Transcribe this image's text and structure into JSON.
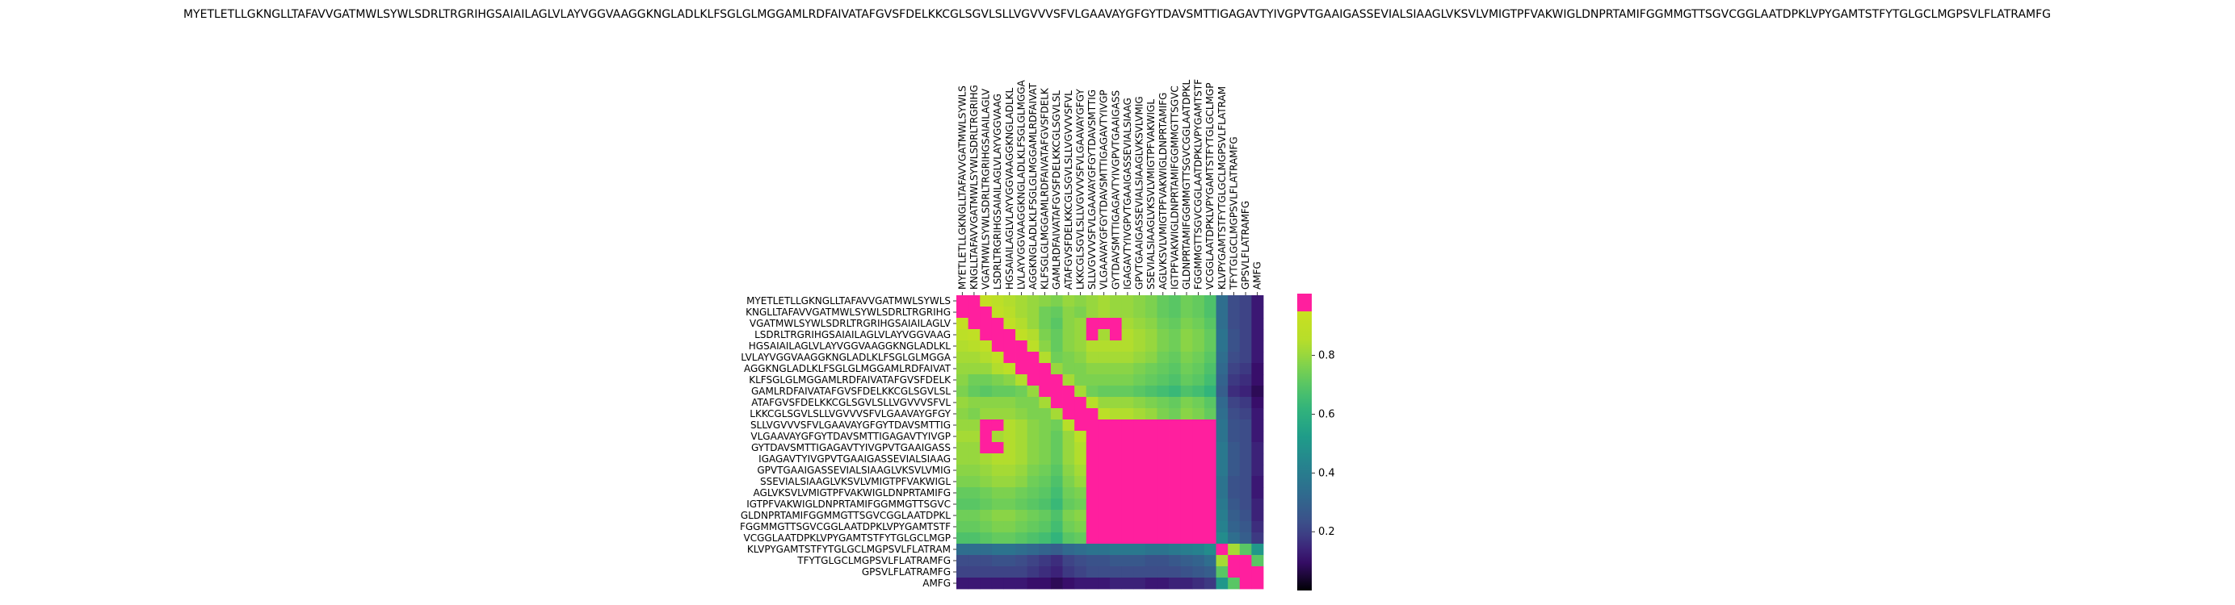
{
  "chart_data": {
    "type": "heatmap",
    "title": "MYETLETLLGKNGLLTAFAVVGATMWLSYWLSDRLTRGRIHGSAIAILAGLVLAYVGGVAAGGKNGLADLKLFSGLGLMGGAMLRDFAIVATAFGVSFDELKKCGLSGVLSLLVGVVVSFVLGAAVAYGFGYTDAVSMTTIGAGAVTYIVGPVTGAAIGASSEVIALSIAAGLVKSVLVMIGTPFVAKWIGLDNPRTAMIFGGMMGTTSGVCGGLAATDPKLVPYGAMTSTFYTGLGCLMGPSVLFLATRAMFG",
    "xlabel": "",
    "ylabel": "",
    "row_labels": [
      "MYETLETLLGKNGLLTAFAVVGATMWLSYWLS",
      "KNGLLTAFAVVGATMWLSYWLSDRLTRGRIHG",
      "VGATMWLSYWLSDRLTRGRIHGSAIAILAGLV",
      "LSDRLTRGRIHGSAIAILAGLVLAYVGGVAAG",
      "HGSAIAILAGLVLAYVGGVAAGGKNGLADLKL",
      "LVLAYVGGVAAGGKNGLADLKLFSGLGLMGGA",
      "AGGKNGLADLKLFSGLGLMGGAMLRDFAIVAT",
      "KLFSGLGLMGGAMLRDFAIVATAFGVSFDELK",
      "GAMLRDFAIVATAFGVSFDELKKCGLSGVLSL",
      "ATAFGVSFDELKKCGLSGVLSLLVGVVVSFVL",
      "LKKCGLSGVLSLLVGVVVSFVLGAAVAYGFGY",
      "SLLVGVVVSFVLGAAVAYGFGYTDAVSMTTIG",
      "VLGAAVAYGFGYTDAVSMTTIGAGAVTYIVGP",
      "GYTDAVSMTTIGAGAVTYIVGPVTGAAIGASS",
      "IGAGAVTYIVGPVTGAAIGASSEVIALSIAAG",
      "GPVTGAAIGASSEVIALSIAAGLVKSVLVMIG",
      "SSEVIALSIAAGLVKSVLVMIGTPFVAKWIGL",
      "AGLVKSVLVMIGTPFVAKWIGLDNPRTAMIFG",
      "IGTPFVAKWIGLDNPRTAMIFGGMMGTTSGVC",
      "GLDNPRTAMIFGGMMGTTSGVCGGLAATDPKL",
      "FGGMMGTTSGVCGGLAATDPKLVPYGAMTSTF",
      "VCGGLAATDPKLVPYGAMTSTFYTGLGCLMGP",
      "KLVPYGAMTSTFYTGLGCLMGPSVLFLATRAM",
      "TFYTGLGCLMGPSVLFLATRAMFG",
      "GPSVLFLATRAMFG",
      "AMFG"
    ],
    "col_labels": [
      "MYETLETLLGKNGLLTAFAVVGATMWLSYWLS",
      "KNGLLTAFAVVGATMWLSYWLSDRLTRGRIHG",
      "VGATMWLSYWLSDRLTRGRIHGSAIAILAGLV",
      "LSDRLTRGRIHGSAIAILAGLVLAYVGGVAAG",
      "HGSAIAILAGLVLAYVGGVAAGGKNGLADLKL",
      "LVLAYVGGVAAGGKNGLADLKLFSGLGLMGGA",
      "AGGKNGLADLKLFSGLGLMGGAMLRDFAIVAT",
      "KLFSGLGLMGGAMLRDFAIVATAFGVSFDELK",
      "GAMLRDFAIVATAFGVSFDELKKCGLSGVLSL",
      "ATAFGVSFDELKKCGLSGVLSLLVGVVVSFVL",
      "LKKCGLSGVLSLLVGVVVSFVLGAAVAYGFGY",
      "SLLVGVVVSFVLGAAVAYGFGYTDAVSMTTIG",
      "VLGAAVAYGFGYTDAVSMTTIGAGAVTYIVGP",
      "GYTDAVSMTTIGAGAVTYIVGPVTGAAIGASS",
      "IGAGAVTYIVGPVTGAAIGASSEVIALSIAAG",
      "GPVTGAAIGASSEVIALSIAAGLVKSVLVMIG",
      "SSEVIALSIAAGLVKSVLVMIGTPFVAKWIGL",
      "AGLVKSVLVMIGTPFVAKWIGLDNPRTAMIFG",
      "IGTPFVAKWIGLDNPRTAMIFGGMMGTTSGVC",
      "GLDNPRTAMIFGGMMGTTSGVCGGLAATDPKL",
      "FGGMMGTTSGVCGGLAATDPKLVPYGAMTSTF",
      "VCGGLAATDPKLVPYGAMTSTFYTGLGCLMGP",
      "KLVPYGAMTSTFYTGLGCLMGPSVLFLATRAM",
      "TFYTGLGCLMGPSVLFLATRAMFG",
      "GPSVLFLATRAMFG",
      "AMFG"
    ],
    "values": [
      [
        0.99,
        0.99,
        0.92,
        0.88,
        0.84,
        0.82,
        0.8,
        0.78,
        0.76,
        0.8,
        0.78,
        0.8,
        0.82,
        0.8,
        0.8,
        0.78,
        0.76,
        0.72,
        0.7,
        0.74,
        0.72,
        0.68,
        0.34,
        0.22,
        0.2,
        0.12
      ],
      [
        0.99,
        0.99,
        0.99,
        0.9,
        0.86,
        0.82,
        0.8,
        0.74,
        0.72,
        0.78,
        0.76,
        0.8,
        0.82,
        0.8,
        0.8,
        0.78,
        0.76,
        0.72,
        0.7,
        0.74,
        0.72,
        0.68,
        0.34,
        0.22,
        0.2,
        0.12
      ],
      [
        0.92,
        0.99,
        0.99,
        0.99,
        0.9,
        0.84,
        0.8,
        0.74,
        0.7,
        0.78,
        0.8,
        0.99,
        0.99,
        0.99,
        0.82,
        0.8,
        0.78,
        0.74,
        0.72,
        0.76,
        0.74,
        0.7,
        0.34,
        0.22,
        0.2,
        0.12
      ],
      [
        0.88,
        0.9,
        0.99,
        0.99,
        0.99,
        0.9,
        0.84,
        0.76,
        0.72,
        0.78,
        0.8,
        0.99,
        0.82,
        0.99,
        0.84,
        0.82,
        0.8,
        0.76,
        0.74,
        0.78,
        0.76,
        0.72,
        0.36,
        0.24,
        0.2,
        0.12
      ],
      [
        0.84,
        0.86,
        0.9,
        0.99,
        0.99,
        0.99,
        0.88,
        0.78,
        0.72,
        0.78,
        0.8,
        0.84,
        0.84,
        0.84,
        0.84,
        0.82,
        0.8,
        0.76,
        0.74,
        0.78,
        0.76,
        0.72,
        0.36,
        0.24,
        0.2,
        0.12
      ],
      [
        0.82,
        0.82,
        0.84,
        0.9,
        0.99,
        0.99,
        0.99,
        0.84,
        0.74,
        0.76,
        0.78,
        0.82,
        0.82,
        0.82,
        0.82,
        0.8,
        0.78,
        0.74,
        0.72,
        0.76,
        0.74,
        0.7,
        0.34,
        0.22,
        0.2,
        0.12
      ],
      [
        0.8,
        0.8,
        0.8,
        0.84,
        0.88,
        0.99,
        0.99,
        0.99,
        0.8,
        0.76,
        0.76,
        0.78,
        0.78,
        0.78,
        0.78,
        0.76,
        0.74,
        0.72,
        0.7,
        0.74,
        0.72,
        0.68,
        0.32,
        0.2,
        0.18,
        0.1
      ],
      [
        0.78,
        0.74,
        0.74,
        0.76,
        0.78,
        0.84,
        0.99,
        0.99,
        0.99,
        0.82,
        0.76,
        0.76,
        0.76,
        0.76,
        0.76,
        0.74,
        0.72,
        0.7,
        0.68,
        0.72,
        0.7,
        0.66,
        0.3,
        0.18,
        0.16,
        0.1
      ],
      [
        0.76,
        0.72,
        0.7,
        0.72,
        0.72,
        0.74,
        0.8,
        0.99,
        0.99,
        0.99,
        0.82,
        0.74,
        0.72,
        0.72,
        0.72,
        0.7,
        0.68,
        0.66,
        0.64,
        0.68,
        0.66,
        0.62,
        0.28,
        0.16,
        0.14,
        0.08
      ],
      [
        0.8,
        0.78,
        0.78,
        0.78,
        0.78,
        0.76,
        0.76,
        0.82,
        0.99,
        0.99,
        0.99,
        0.86,
        0.8,
        0.8,
        0.8,
        0.78,
        0.76,
        0.74,
        0.72,
        0.76,
        0.74,
        0.7,
        0.32,
        0.2,
        0.18,
        0.1
      ],
      [
        0.78,
        0.76,
        0.8,
        0.8,
        0.8,
        0.78,
        0.76,
        0.76,
        0.82,
        0.99,
        0.99,
        0.99,
        0.88,
        0.84,
        0.84,
        0.82,
        0.8,
        0.76,
        0.74,
        0.78,
        0.76,
        0.72,
        0.34,
        0.22,
        0.2,
        0.12
      ],
      [
        0.8,
        0.8,
        0.99,
        0.99,
        0.84,
        0.82,
        0.78,
        0.76,
        0.74,
        0.86,
        0.99,
        0.99,
        0.99,
        0.99,
        0.99,
        0.99,
        0.99,
        0.99,
        0.99,
        0.99,
        0.99,
        0.99,
        0.36,
        0.24,
        0.22,
        0.12
      ],
      [
        0.82,
        0.82,
        0.99,
        0.82,
        0.84,
        0.82,
        0.78,
        0.76,
        0.72,
        0.8,
        0.88,
        0.99,
        0.99,
        0.99,
        0.99,
        0.99,
        0.99,
        0.99,
        0.99,
        0.99,
        0.99,
        0.99,
        0.36,
        0.24,
        0.22,
        0.12
      ],
      [
        0.8,
        0.8,
        0.99,
        0.99,
        0.84,
        0.82,
        0.78,
        0.76,
        0.72,
        0.8,
        0.84,
        0.99,
        0.99,
        0.99,
        0.99,
        0.99,
        0.99,
        0.99,
        0.99,
        0.99,
        0.99,
        0.99,
        0.38,
        0.26,
        0.22,
        0.14
      ],
      [
        0.8,
        0.8,
        0.82,
        0.84,
        0.84,
        0.82,
        0.78,
        0.76,
        0.72,
        0.8,
        0.84,
        0.99,
        0.99,
        0.99,
        0.99,
        0.99,
        0.99,
        0.99,
        0.99,
        0.99,
        0.99,
        0.99,
        0.38,
        0.26,
        0.22,
        0.14
      ],
      [
        0.78,
        0.78,
        0.8,
        0.82,
        0.82,
        0.8,
        0.76,
        0.74,
        0.7,
        0.78,
        0.82,
        0.99,
        0.99,
        0.99,
        0.99,
        0.99,
        0.99,
        0.99,
        0.99,
        0.99,
        0.99,
        0.99,
        0.38,
        0.26,
        0.22,
        0.14
      ],
      [
        0.76,
        0.76,
        0.78,
        0.8,
        0.8,
        0.78,
        0.74,
        0.72,
        0.68,
        0.76,
        0.8,
        0.99,
        0.99,
        0.99,
        0.99,
        0.99,
        0.99,
        0.99,
        0.99,
        0.99,
        0.99,
        0.99,
        0.36,
        0.24,
        0.22,
        0.12
      ],
      [
        0.72,
        0.72,
        0.74,
        0.76,
        0.76,
        0.74,
        0.72,
        0.7,
        0.66,
        0.74,
        0.76,
        0.99,
        0.99,
        0.99,
        0.99,
        0.99,
        0.99,
        0.99,
        0.99,
        0.99,
        0.99,
        0.99,
        0.36,
        0.24,
        0.22,
        0.12
      ],
      [
        0.7,
        0.7,
        0.72,
        0.74,
        0.74,
        0.72,
        0.7,
        0.68,
        0.64,
        0.72,
        0.74,
        0.99,
        0.99,
        0.99,
        0.99,
        0.99,
        0.99,
        0.99,
        0.99,
        0.99,
        0.99,
        0.99,
        0.38,
        0.26,
        0.22,
        0.14
      ],
      [
        0.74,
        0.74,
        0.76,
        0.78,
        0.78,
        0.76,
        0.74,
        0.72,
        0.68,
        0.76,
        0.78,
        0.99,
        0.99,
        0.99,
        0.99,
        0.99,
        0.99,
        0.99,
        0.99,
        0.99,
        0.99,
        0.99,
        0.4,
        0.28,
        0.24,
        0.14
      ],
      [
        0.72,
        0.72,
        0.74,
        0.76,
        0.76,
        0.74,
        0.72,
        0.7,
        0.66,
        0.74,
        0.76,
        0.99,
        0.99,
        0.99,
        0.99,
        0.99,
        0.99,
        0.99,
        0.99,
        0.99,
        0.99,
        0.99,
        0.42,
        0.3,
        0.26,
        0.16
      ],
      [
        0.68,
        0.68,
        0.7,
        0.72,
        0.72,
        0.7,
        0.68,
        0.66,
        0.62,
        0.7,
        0.72,
        0.99,
        0.99,
        0.99,
        0.99,
        0.99,
        0.99,
        0.99,
        0.99,
        0.99,
        0.99,
        0.99,
        0.46,
        0.34,
        0.28,
        0.18
      ],
      [
        0.34,
        0.34,
        0.34,
        0.36,
        0.36,
        0.34,
        0.32,
        0.3,
        0.28,
        0.32,
        0.34,
        0.36,
        0.36,
        0.38,
        0.38,
        0.38,
        0.36,
        0.36,
        0.38,
        0.4,
        0.42,
        0.46,
        0.99,
        0.82,
        0.7,
        0.5
      ],
      [
        0.22,
        0.22,
        0.22,
        0.24,
        0.24,
        0.22,
        0.2,
        0.18,
        0.16,
        0.2,
        0.22,
        0.24,
        0.24,
        0.26,
        0.26,
        0.26,
        0.24,
        0.24,
        0.26,
        0.28,
        0.3,
        0.34,
        0.82,
        0.99,
        0.99,
        0.7
      ],
      [
        0.2,
        0.2,
        0.2,
        0.2,
        0.2,
        0.2,
        0.18,
        0.16,
        0.14,
        0.18,
        0.2,
        0.22,
        0.22,
        0.22,
        0.22,
        0.22,
        0.22,
        0.22,
        0.22,
        0.24,
        0.26,
        0.28,
        0.7,
        0.99,
        0.99,
        0.99
      ],
      [
        0.12,
        0.12,
        0.12,
        0.12,
        0.12,
        0.12,
        0.1,
        0.1,
        0.08,
        0.1,
        0.12,
        0.12,
        0.12,
        0.14,
        0.14,
        0.14,
        0.12,
        0.12,
        0.14,
        0.14,
        0.16,
        0.18,
        0.5,
        0.7,
        0.99,
        0.99
      ]
    ],
    "colorbar": {
      "ticks": [
        0.2,
        0.4,
        0.6,
        0.8
      ],
      "tick_labels": [
        "0.2",
        "0.4",
        "0.6",
        "0.8"
      ],
      "range": [
        0.0,
        1.0
      ],
      "over_threshold": 0.95,
      "over_color": "#ff1f9e",
      "stops": [
        "#000004",
        "#3b0f70",
        "#3e4a89",
        "#31688e",
        "#26828e",
        "#1f9e89",
        "#35b779",
        "#6ece58",
        "#b5de2b",
        "#c9e020"
      ]
    }
  }
}
